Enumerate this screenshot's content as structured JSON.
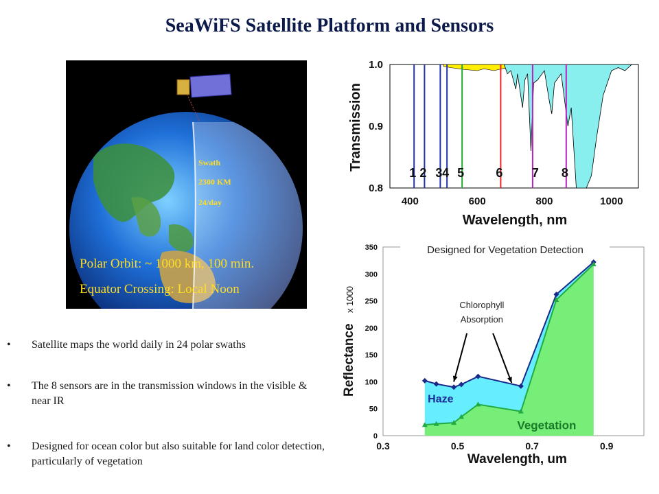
{
  "title": "SeaWiFS Satellite Platform and Sensors",
  "earth_panel": {
    "swath_lines": [
      "Swath",
      "2300 KM",
      "24/day"
    ],
    "orbit_line1": "Polar Orbit: ~ 1000 km, 100 min.",
    "orbit_line2": "Equator Crossing: Local Noon"
  },
  "bullets": [
    "Satellite maps the world daily in 24 polar swaths",
    "The 8 sensors are in the transmission windows in the visible & near IR",
    "Designed for ocean color but also suitable for land color detection, particularly of vegetation"
  ],
  "chart_data": [
    {
      "type": "area",
      "title": "",
      "xlabel": "Wavelength, nm",
      "ylabel": "Transmission",
      "xlim": [
        340,
        1080
      ],
      "ylim": [
        0.8,
        1.0
      ],
      "x_ticks": [
        "400",
        "600",
        "800",
        "1000"
      ],
      "y_ticks": [
        "0.8",
        "0.9",
        "1.0"
      ],
      "bands": [
        {
          "label": "1",
          "x": 412,
          "color": "#2233aa"
        },
        {
          "label": "2",
          "x": 443,
          "color": "#2233aa"
        },
        {
          "label": "3",
          "x": 490,
          "color": "#2233aa"
        },
        {
          "label": "4",
          "x": 510,
          "color": "#2233aa"
        },
        {
          "label": "5",
          "x": 555,
          "color": "#22aa33"
        },
        {
          "label": "6",
          "x": 670,
          "color": "#ee2222"
        },
        {
          "label": "7",
          "x": 765,
          "color": "#bb22bb"
        },
        {
          "label": "8",
          "x": 865,
          "color": "#bb22bb"
        }
      ],
      "fills": {
        "visible": "#ffee00",
        "ir": "#88eeee"
      }
    },
    {
      "type": "area",
      "title": "Designed for Vegetation Detection",
      "xlabel": "Wavelength, um",
      "ylabel": "Reflectance",
      "ylabel_suffix": "x 1000",
      "annotation": [
        "Chlorophyll",
        "Absorption"
      ],
      "xlim": [
        0.3,
        1.0
      ],
      "ylim": [
        0,
        350
      ],
      "x_ticks": [
        "0.3",
        "0.5",
        "0.7",
        "0.9"
      ],
      "y_ticks": [
        "0",
        "50",
        "100",
        "150",
        "200",
        "250",
        "300",
        "350"
      ],
      "series": [
        {
          "name": "Haze",
          "color": "#1a2a8a",
          "fill": "#66eeff",
          "x": [
            0.412,
            0.443,
            0.49,
            0.51,
            0.555,
            0.67,
            0.765,
            0.865
          ],
          "values": [
            102,
            96,
            90,
            95,
            110,
            92,
            262,
            322
          ]
        },
        {
          "name": "Vegetation",
          "color": "#22aa44",
          "fill": "#77ee77",
          "x": [
            0.412,
            0.443,
            0.49,
            0.51,
            0.555,
            0.67,
            0.765,
            0.865
          ],
          "values": [
            20,
            22,
            24,
            35,
            58,
            45,
            252,
            318
          ]
        }
      ]
    }
  ]
}
